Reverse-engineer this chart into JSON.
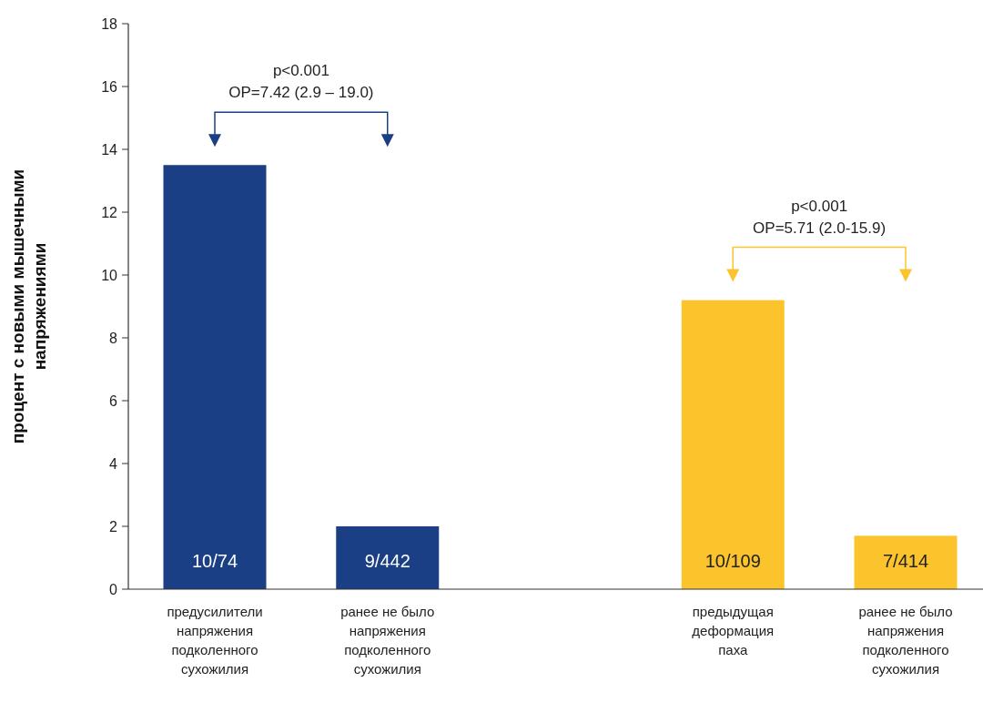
{
  "chart_data": {
    "type": "bar",
    "categories": [
      "предусилители напряжения подколенного сухожилия",
      "ранее не было напряжения подколенного сухожилия",
      null,
      "предыдущая деформация паха",
      "ранее не было напряжения подколенного сухожилия"
    ],
    "values": [
      13.5,
      2.0,
      null,
      9.2,
      1.7
    ],
    "colors": [
      "#1b3f84",
      "#1b3f84",
      null,
      "#fbc42c",
      "#fbc42c"
    ],
    "value_labels": [
      "10/74",
      "9/442",
      null,
      "10/109",
      "7/414"
    ],
    "ylabel": "процент с новыми мышечными напряжениями",
    "ylim": [
      0,
      18
    ],
    "yticks": [
      0,
      2,
      4,
      6,
      8,
      10,
      12,
      14,
      16,
      18
    ],
    "annotations": [
      "p<0.001\nОР=7.42 (2.9 – 19.0)",
      "p<0.001\nОР=5.71 (2.0-15.9)"
    ],
    "grid": false
  }
}
